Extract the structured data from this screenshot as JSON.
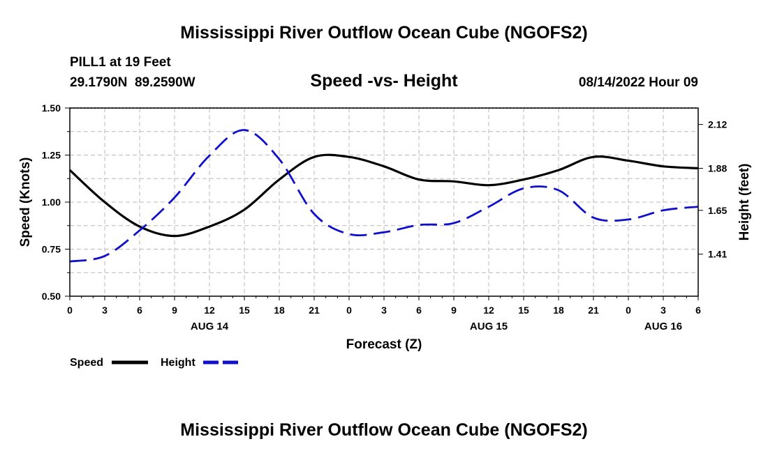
{
  "page": {
    "title_top": "Mississippi River Outflow Ocean Cube (NGOFS2)",
    "title_bottom": "Mississippi River Outflow Ocean Cube (NGOFS2)"
  },
  "station": {
    "name": "PILL1 at 19 Feet",
    "coords": "29.1790N  89.2590W"
  },
  "colors": {
    "speed": "#000000",
    "height": "#1010cc",
    "grid": "#b8b8b8"
  },
  "chart_data": {
    "type": "line",
    "title": "Speed -vs- Height",
    "datetime": "08/14/2022 Hour 09",
    "xlabel": "Forecast (Z)",
    "ylabel_left": "Speed (Knots)",
    "ylabel_right": "Height (feet)",
    "xlim": [
      0,
      54
    ],
    "xticks": [
      0,
      3,
      6,
      9,
      12,
      15,
      18,
      21,
      24,
      27,
      30,
      33,
      36,
      39,
      42,
      45,
      48,
      51,
      54
    ],
    "xtick_labels": [
      "0",
      "3",
      "6",
      "9",
      "12",
      "15",
      "18",
      "21",
      "0",
      "3",
      "6",
      "9",
      "12",
      "15",
      "18",
      "21",
      "0",
      "3",
      "6"
    ],
    "date_labels": [
      {
        "label": "AUG 14",
        "x": 12
      },
      {
        "label": "AUG 15",
        "x": 36
      },
      {
        "label": "AUG 16",
        "x": 51
      }
    ],
    "ylim_left": [
      0.5,
      1.5
    ],
    "yticks_left": [
      0.5,
      0.75,
      1.0,
      1.25,
      1.5
    ],
    "ytick_labels_left": [
      "0.50",
      "0.75",
      "1.00",
      "1.25",
      "1.50"
    ],
    "ylim_right": [
      1.18,
      2.21
    ],
    "yticks_right": [
      1.41,
      1.65,
      1.88,
      2.12
    ],
    "ytick_labels_right": [
      "1.41",
      "1.65",
      "1.88",
      "2.12"
    ],
    "grid": true,
    "series": [
      {
        "name": "Speed",
        "axis": "left",
        "style": "solid",
        "x": [
          0,
          3,
          6,
          9,
          12,
          15,
          18,
          21,
          24,
          27,
          30,
          33,
          36,
          39,
          42,
          45,
          48,
          51,
          54
        ],
        "values": [
          1.17,
          1.0,
          0.87,
          0.82,
          0.87,
          0.96,
          1.12,
          1.24,
          1.24,
          1.19,
          1.12,
          1.11,
          1.09,
          1.12,
          1.17,
          1.24,
          1.22,
          1.19,
          1.18
        ]
      },
      {
        "name": "Height",
        "axis": "right",
        "style": "dashed",
        "x": [
          0,
          3,
          6,
          9,
          12,
          15,
          18,
          21,
          24,
          27,
          30,
          33,
          36,
          39,
          42,
          45,
          48,
          51,
          54
        ],
        "values": [
          1.37,
          1.4,
          1.54,
          1.72,
          1.95,
          2.09,
          1.93,
          1.63,
          1.52,
          1.53,
          1.57,
          1.58,
          1.67,
          1.77,
          1.76,
          1.61,
          1.6,
          1.65,
          1.67
        ]
      }
    ],
    "legend": [
      {
        "label": "Speed",
        "series": "Speed"
      },
      {
        "label": "Height",
        "series": "Height"
      }
    ]
  }
}
